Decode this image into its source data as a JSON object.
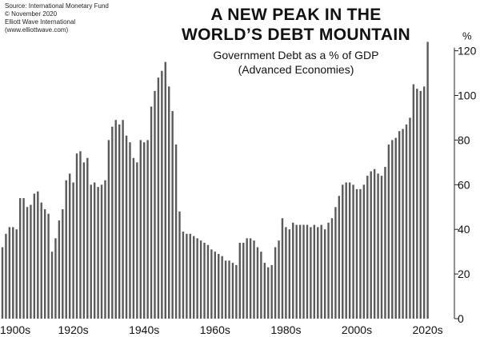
{
  "source_lines": [
    "Source: International Monetary Fund",
    "© November 2020",
    "Elliott Wave International",
    "(www.elliottwave.com)"
  ],
  "chart_data": {
    "type": "bar",
    "title": "A NEW PEAK IN THE WORLD’S DEBT MOUNTAIN",
    "title_lines": [
      "A NEW PEAK IN THE",
      "WORLD’S DEBT MOUNTAIN"
    ],
    "subtitle_lines": [
      "Government Debt as a % of GDP",
      "(Advanced Economies)"
    ],
    "xlabel": "",
    "ylabel": "%",
    "ylim": [
      0,
      120
    ],
    "yticks": [
      0,
      20,
      40,
      60,
      80,
      100,
      120
    ],
    "y_axis_side": "right",
    "x_tick_labels": [
      "1900s",
      "1920s",
      "1940s",
      "1960s",
      "1980s",
      "2000s",
      "2020s"
    ],
    "x_tick_years": [
      1900,
      1920,
      1940,
      1960,
      1980,
      2000,
      2020
    ],
    "bar_color": "#5a5a5a",
    "grid": false,
    "years": [
      1900,
      1901,
      1902,
      1903,
      1904,
      1905,
      1906,
      1907,
      1908,
      1909,
      1910,
      1911,
      1912,
      1913,
      1914,
      1915,
      1916,
      1917,
      1918,
      1919,
      1920,
      1921,
      1922,
      1923,
      1924,
      1925,
      1926,
      1927,
      1928,
      1929,
      1930,
      1931,
      1932,
      1933,
      1934,
      1935,
      1936,
      1937,
      1938,
      1939,
      1940,
      1941,
      1942,
      1943,
      1944,
      1945,
      1946,
      1947,
      1948,
      1949,
      1950,
      1951,
      1952,
      1953,
      1954,
      1955,
      1956,
      1957,
      1958,
      1959,
      1960,
      1961,
      1962,
      1963,
      1964,
      1965,
      1966,
      1967,
      1968,
      1969,
      1970,
      1971,
      1972,
      1973,
      1974,
      1975,
      1976,
      1977,
      1978,
      1979,
      1980,
      1981,
      1982,
      1983,
      1984,
      1985,
      1986,
      1987,
      1988,
      1989,
      1990,
      1991,
      1992,
      1993,
      1994,
      1995,
      1996,
      1997,
      1998,
      1999,
      2000,
      2001,
      2002,
      2003,
      2004,
      2005,
      2006,
      2007,
      2008,
      2009,
      2010,
      2011,
      2012,
      2013,
      2014,
      2015,
      2016,
      2017,
      2018,
      2019,
      2020
    ],
    "values": [
      32,
      38,
      41,
      41,
      40,
      54,
      54,
      50,
      51,
      56,
      57,
      52,
      49,
      47,
      30,
      36,
      44,
      49,
      62,
      65,
      61,
      74,
      75,
      70,
      72,
      60,
      61,
      59,
      60,
      62,
      80,
      86,
      89,
      87,
      89,
      82,
      79,
      72,
      70,
      80,
      79,
      80,
      95,
      102,
      108,
      111,
      115,
      104,
      93,
      78,
      48,
      39,
      38,
      38,
      37,
      36,
      35,
      34,
      33,
      31,
      30,
      29,
      28,
      26,
      26,
      25,
      24,
      34,
      34,
      36,
      36,
      35,
      32,
      30,
      25,
      23,
      24,
      32,
      35,
      45,
      41,
      40,
      43,
      42,
      42,
      42,
      42,
      41,
      42,
      41,
      42,
      40,
      43,
      45,
      50,
      55,
      60,
      61,
      61,
      60,
      58,
      58,
      60,
      64,
      66,
      67,
      65,
      64,
      68,
      78,
      80,
      81,
      84,
      85,
      87,
      90,
      105,
      103,
      102,
      104,
      124
    ]
  }
}
